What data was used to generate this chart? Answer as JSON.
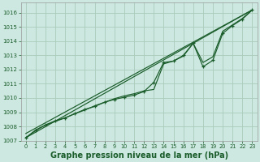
{
  "bg_color": "#cce8e0",
  "grid_color": "#aaccbb",
  "line_color": "#1a5c2a",
  "marker_color": "#1a5c2a",
  "xlabel": "Graphe pression niveau de la mer (hPa)",
  "xlabel_fontsize": 7.0,
  "xlim": [
    -0.5,
    23.5
  ],
  "ylim": [
    1007.0,
    1016.7
  ],
  "yticks": [
    1007,
    1008,
    1009,
    1010,
    1011,
    1012,
    1013,
    1014,
    1015,
    1016
  ],
  "xticks": [
    0,
    1,
    2,
    3,
    4,
    5,
    6,
    7,
    8,
    9,
    10,
    11,
    12,
    13,
    14,
    15,
    16,
    17,
    18,
    19,
    20,
    21,
    22,
    23
  ],
  "line_main_x": [
    0,
    1,
    2,
    3,
    4,
    5,
    6,
    7,
    8,
    9,
    10,
    11,
    12,
    13,
    14,
    15,
    16,
    17,
    18,
    19,
    20,
    21,
    22,
    23
  ],
  "line_main_y": [
    1007.2,
    1007.7,
    1008.1,
    1008.4,
    1008.6,
    1008.9,
    1009.2,
    1009.4,
    1009.7,
    1009.9,
    1010.05,
    1010.2,
    1010.45,
    1011.1,
    1012.5,
    1012.6,
    1013.0,
    1013.85,
    1012.2,
    1012.65,
    1014.55,
    1015.1,
    1015.55,
    1016.2
  ],
  "line_smooth_x": [
    0,
    1,
    2,
    3,
    4,
    5,
    6,
    7,
    8,
    9,
    10,
    11,
    12,
    13,
    14,
    15,
    16,
    17,
    18,
    19,
    20,
    21,
    22,
    23
  ],
  "line_smooth_y": [
    1007.2,
    1007.75,
    1008.1,
    1008.35,
    1008.6,
    1008.9,
    1009.15,
    1009.45,
    1009.7,
    1009.95,
    1010.15,
    1010.3,
    1010.5,
    1010.6,
    1012.4,
    1012.6,
    1012.95,
    1013.85,
    1012.5,
    1012.9,
    1014.7,
    1015.15,
    1015.6,
    1016.2
  ],
  "ref_line1_x": [
    0,
    23
  ],
  "ref_line1_y": [
    1007.2,
    1016.2
  ],
  "ref_line2_x": [
    0,
    23
  ],
  "ref_line2_y": [
    1007.5,
    1016.2
  ]
}
